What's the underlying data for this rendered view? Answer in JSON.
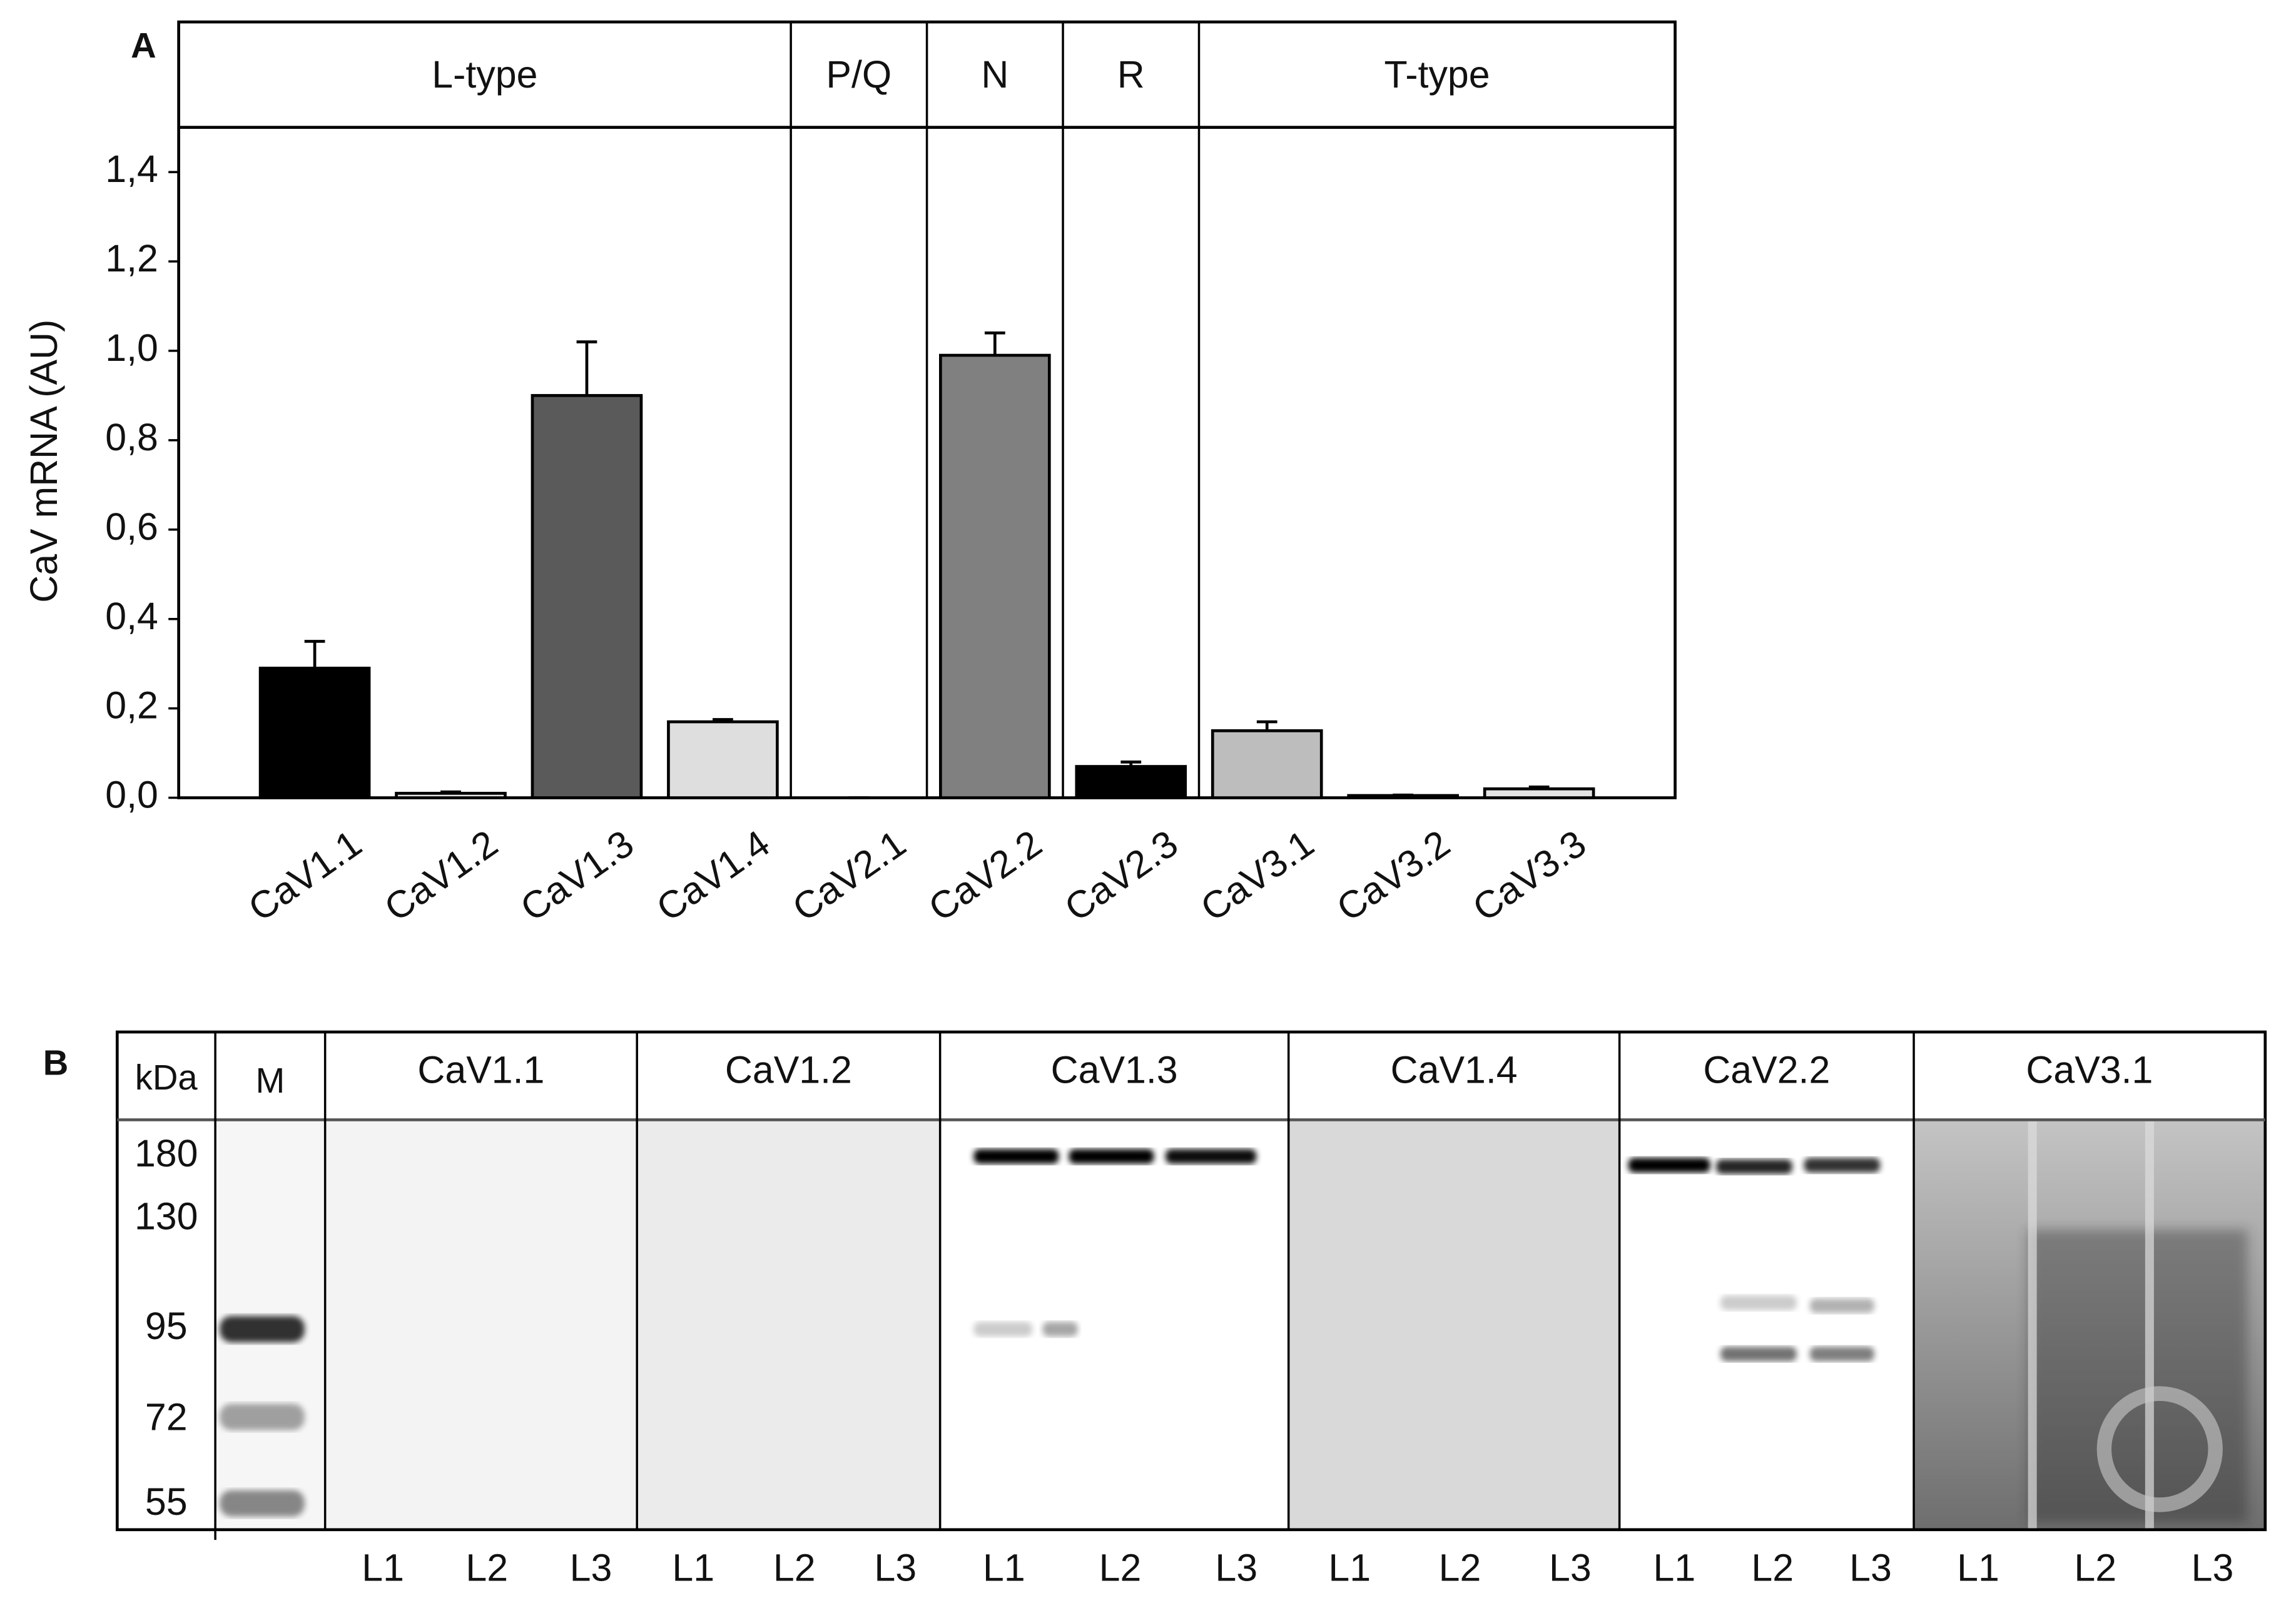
{
  "chart_data": {
    "type": "bar",
    "panel_label": "A",
    "ylabel": "CaV mRNA (AU)",
    "categories": [
      "CaV1.1",
      "CaV1.2",
      "CaV1.3",
      "CaV1.4",
      "CaV2.1",
      "CaV2.2",
      "CaV2.3",
      "CaV3.1",
      "CaV3.2",
      "CaV3.3"
    ],
    "values": [
      0.29,
      0.01,
      0.9,
      0.17,
      0,
      0.99,
      0.07,
      0.15,
      0.005,
      0.02
    ],
    "errors": [
      0.06,
      0.003,
      0.12,
      0.005,
      0,
      0.05,
      0.01,
      0.02,
      0.001,
      0.004
    ],
    "colors": [
      "#000000",
      "#e6e6e6",
      "#5a5a5a",
      "#dedede",
      "#ffffff",
      "#808080",
      "#000000",
      "#bdbdbd",
      "#ffffff",
      "#e4e4e4"
    ],
    "groups": [
      {
        "name": "L-type",
        "members": [
          "CaV1.1",
          "CaV1.2",
          "CaV1.3",
          "CaV1.4"
        ]
      },
      {
        "name": "P/Q",
        "members": [
          "CaV2.1"
        ]
      },
      {
        "name": "N",
        "members": [
          "CaV2.2"
        ]
      },
      {
        "name": "R",
        "members": [
          "CaV2.3"
        ]
      },
      {
        "name": "T-type",
        "members": [
          "CaV3.1",
          "CaV3.2",
          "CaV3.3"
        ]
      }
    ],
    "ylim": [
      0,
      1.5
    ],
    "yticks": [
      {
        "value": 0,
        "label": "0,0"
      },
      {
        "value": 0.2,
        "label": "0,2"
      },
      {
        "value": 0.4,
        "label": "0,4"
      },
      {
        "value": 0.6,
        "label": "0,6"
      },
      {
        "value": 0.8,
        "label": "0,8"
      },
      {
        "value": 1.0,
        "label": "1,0"
      },
      {
        "value": 1.2,
        "label": "1,2"
      },
      {
        "value": 1.4,
        "label": "1,4"
      }
    ]
  },
  "blot": {
    "panel_label": "B",
    "unit_label": "kDa",
    "marker_lane": "M",
    "markers": [
      180,
      130,
      95,
      72,
      55
    ],
    "lanes": [
      {
        "name": "CaV1.1",
        "wells": [
          "L1",
          "L2",
          "L3"
        ]
      },
      {
        "name": "CaV1.2",
        "wells": [
          "L1",
          "L2",
          "L3"
        ]
      },
      {
        "name": "CaV1.3",
        "wells": [
          "L1",
          "L2",
          "L3"
        ]
      },
      {
        "name": "CaV1.4",
        "wells": [
          "L1",
          "L2",
          "L3"
        ]
      },
      {
        "name": "CaV2.2",
        "wells": [
          "L1",
          "L2",
          "L3"
        ]
      },
      {
        "name": "CaV3.1",
        "wells": [
          "L1",
          "L2",
          "L3"
        ]
      }
    ]
  }
}
